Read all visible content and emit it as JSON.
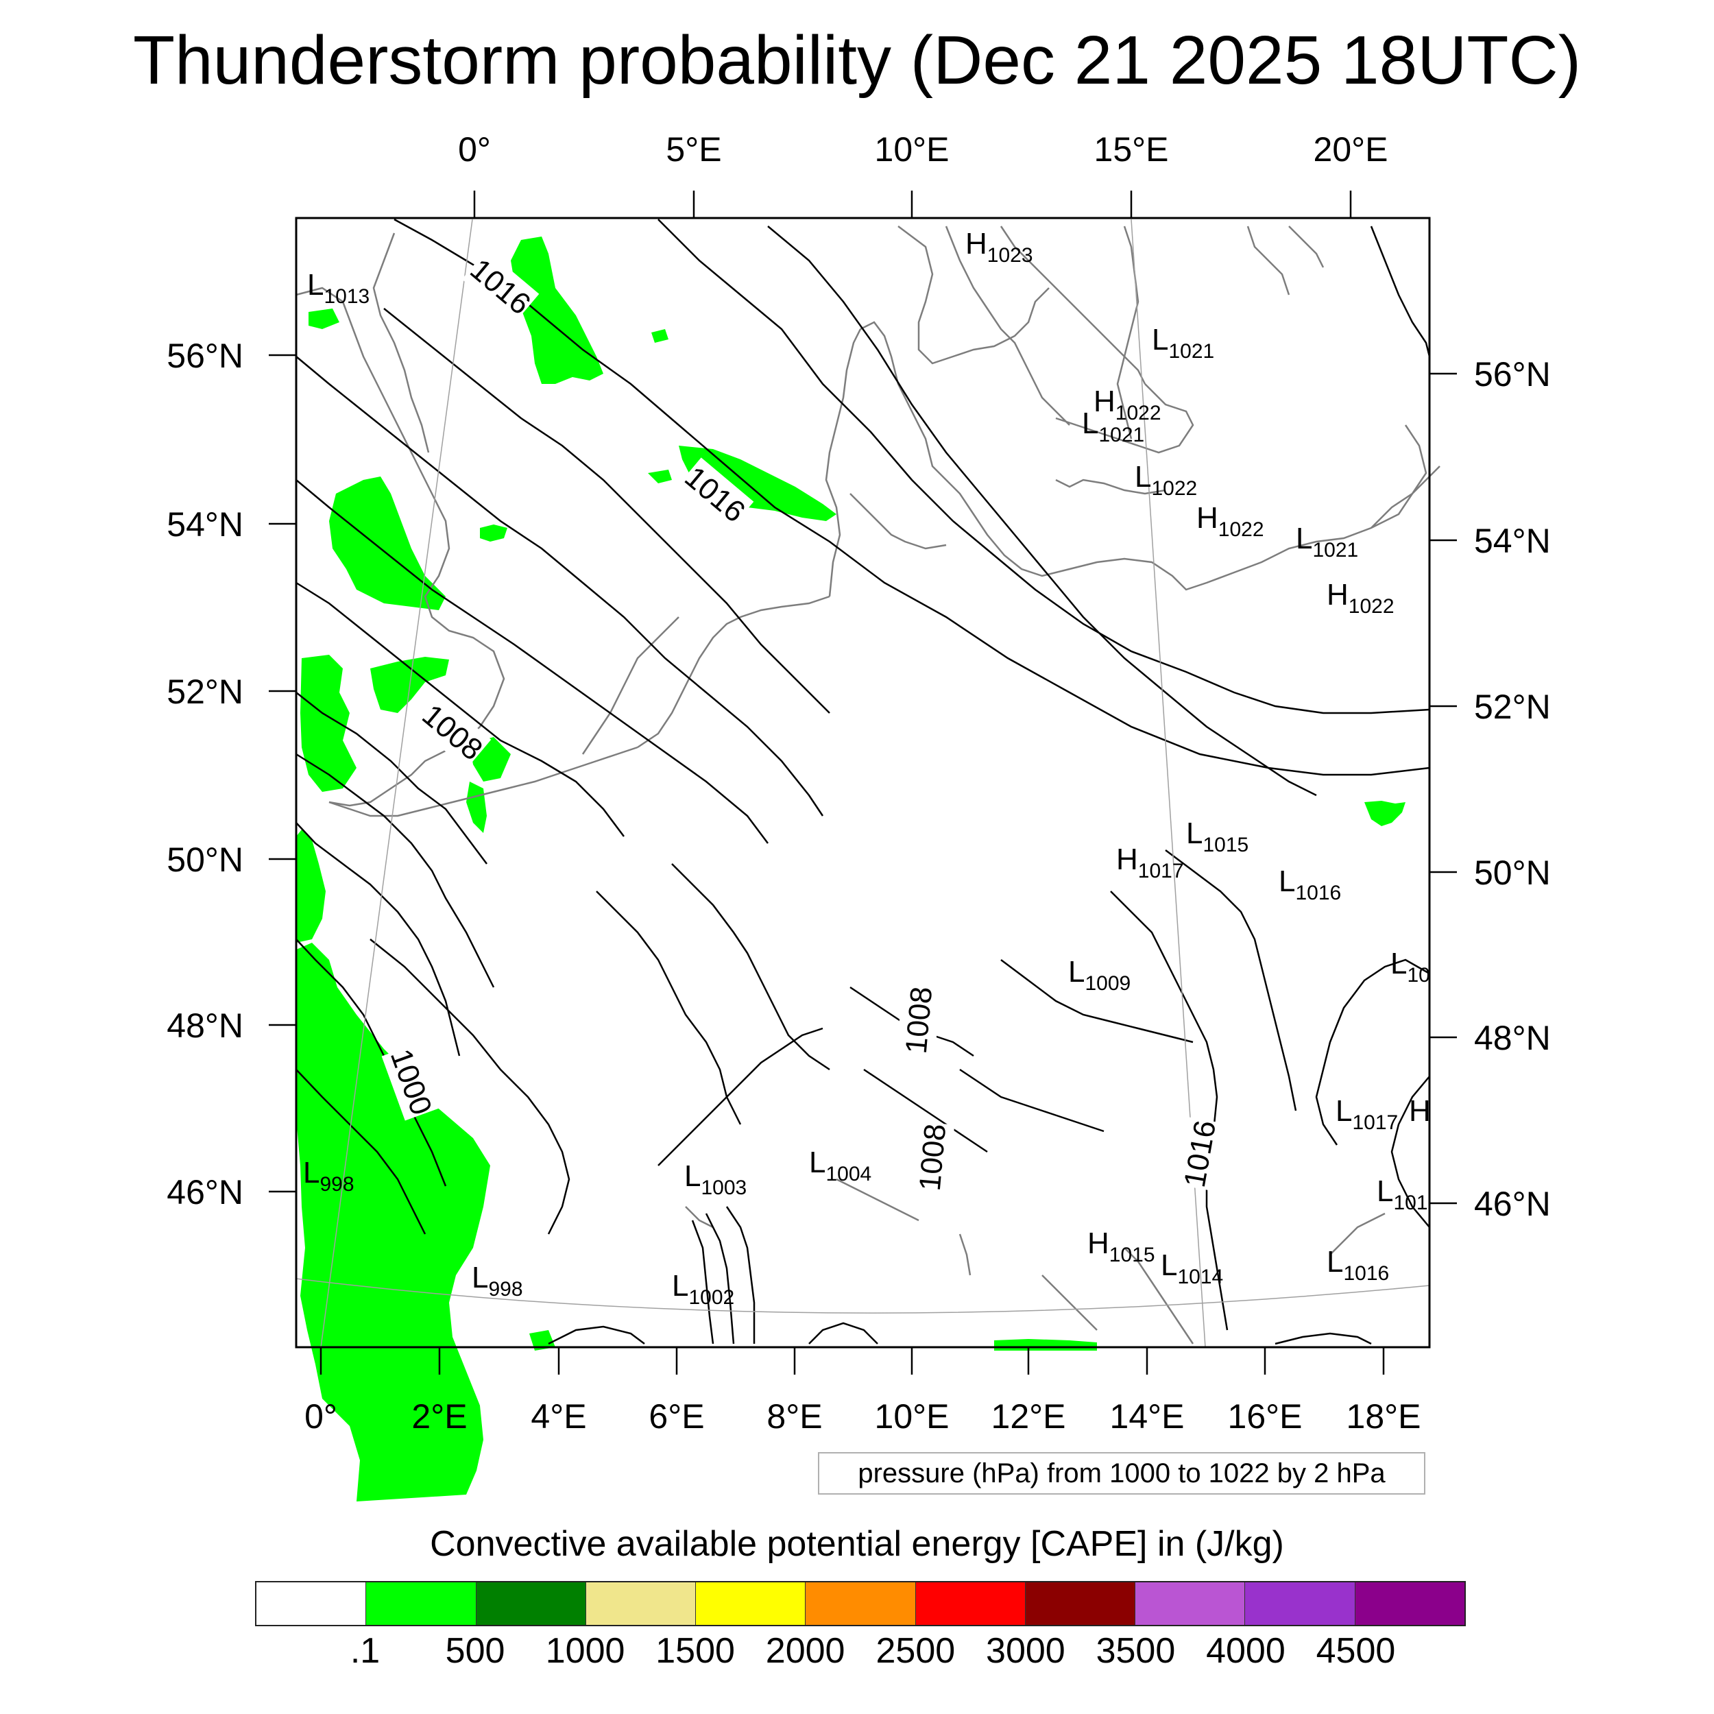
{
  "title": "Thunderstorm probability (Dec 21 2025 18UTC)",
  "axes": {
    "top_ticks": [
      "0°",
      "5°E",
      "10°E",
      "15°E",
      "20°E"
    ],
    "bottom_ticks": [
      "0°",
      "2°E",
      "4°E",
      "6°E",
      "8°E",
      "10°E",
      "12°E",
      "14°E",
      "16°E",
      "18°E"
    ],
    "left_ticks": [
      "56°N",
      "54°N",
      "52°N",
      "50°N",
      "48°N",
      "46°N"
    ],
    "right_ticks": [
      "56°N",
      "54°N",
      "52°N",
      "50°N",
      "48°N",
      "46°N"
    ]
  },
  "contour_labels": [
    "1016",
    "1016",
    "1008",
    "1000",
    "1008",
    "1008",
    "1016"
  ],
  "pressure_centers": [
    {
      "type": "H",
      "value": "1023"
    },
    {
      "type": "L",
      "value": "1013"
    },
    {
      "type": "L",
      "value": "1021"
    },
    {
      "type": "H",
      "value": "1022"
    },
    {
      "type": "L",
      "value": "1021"
    },
    {
      "type": "L",
      "value": "1022"
    },
    {
      "type": "H",
      "value": "1022"
    },
    {
      "type": "L",
      "value": "1021"
    },
    {
      "type": "H",
      "value": "1022"
    },
    {
      "type": "L",
      "value": "1015"
    },
    {
      "type": "H",
      "value": "1017"
    },
    {
      "type": "L",
      "value": "1016"
    },
    {
      "type": "L",
      "value": "1009"
    },
    {
      "type": "L",
      "value": "10"
    },
    {
      "type": "L",
      "value": "1017"
    },
    {
      "type": "H",
      "value": ""
    },
    {
      "type": "L",
      "value": "998"
    },
    {
      "type": "L",
      "value": "1003"
    },
    {
      "type": "L",
      "value": "1004"
    },
    {
      "type": "L",
      "value": "101"
    },
    {
      "type": "H",
      "value": "1015"
    },
    {
      "type": "L",
      "value": "1014"
    },
    {
      "type": "L",
      "value": "1016"
    },
    {
      "type": "L",
      "value": "998"
    },
    {
      "type": "L",
      "value": "1002"
    }
  ],
  "note": "pressure (hPa) from 1000 to 1022 by 2 hPa",
  "legend": {
    "title": "Convective available potential energy [CAPE] in (J/kg)",
    "colors": [
      "#ffffff",
      "#00ff00",
      "#008000",
      "#f0e68c",
      "#ffff00",
      "#ff8c00",
      "#ff0000",
      "#8b0000",
      "#ba55d3",
      "#9932cc",
      "#8b008b"
    ],
    "labels": [
      ".1",
      "500",
      "1000",
      "1500",
      "2000",
      "2500",
      "3000",
      "3500",
      "4000",
      "4500"
    ]
  }
}
